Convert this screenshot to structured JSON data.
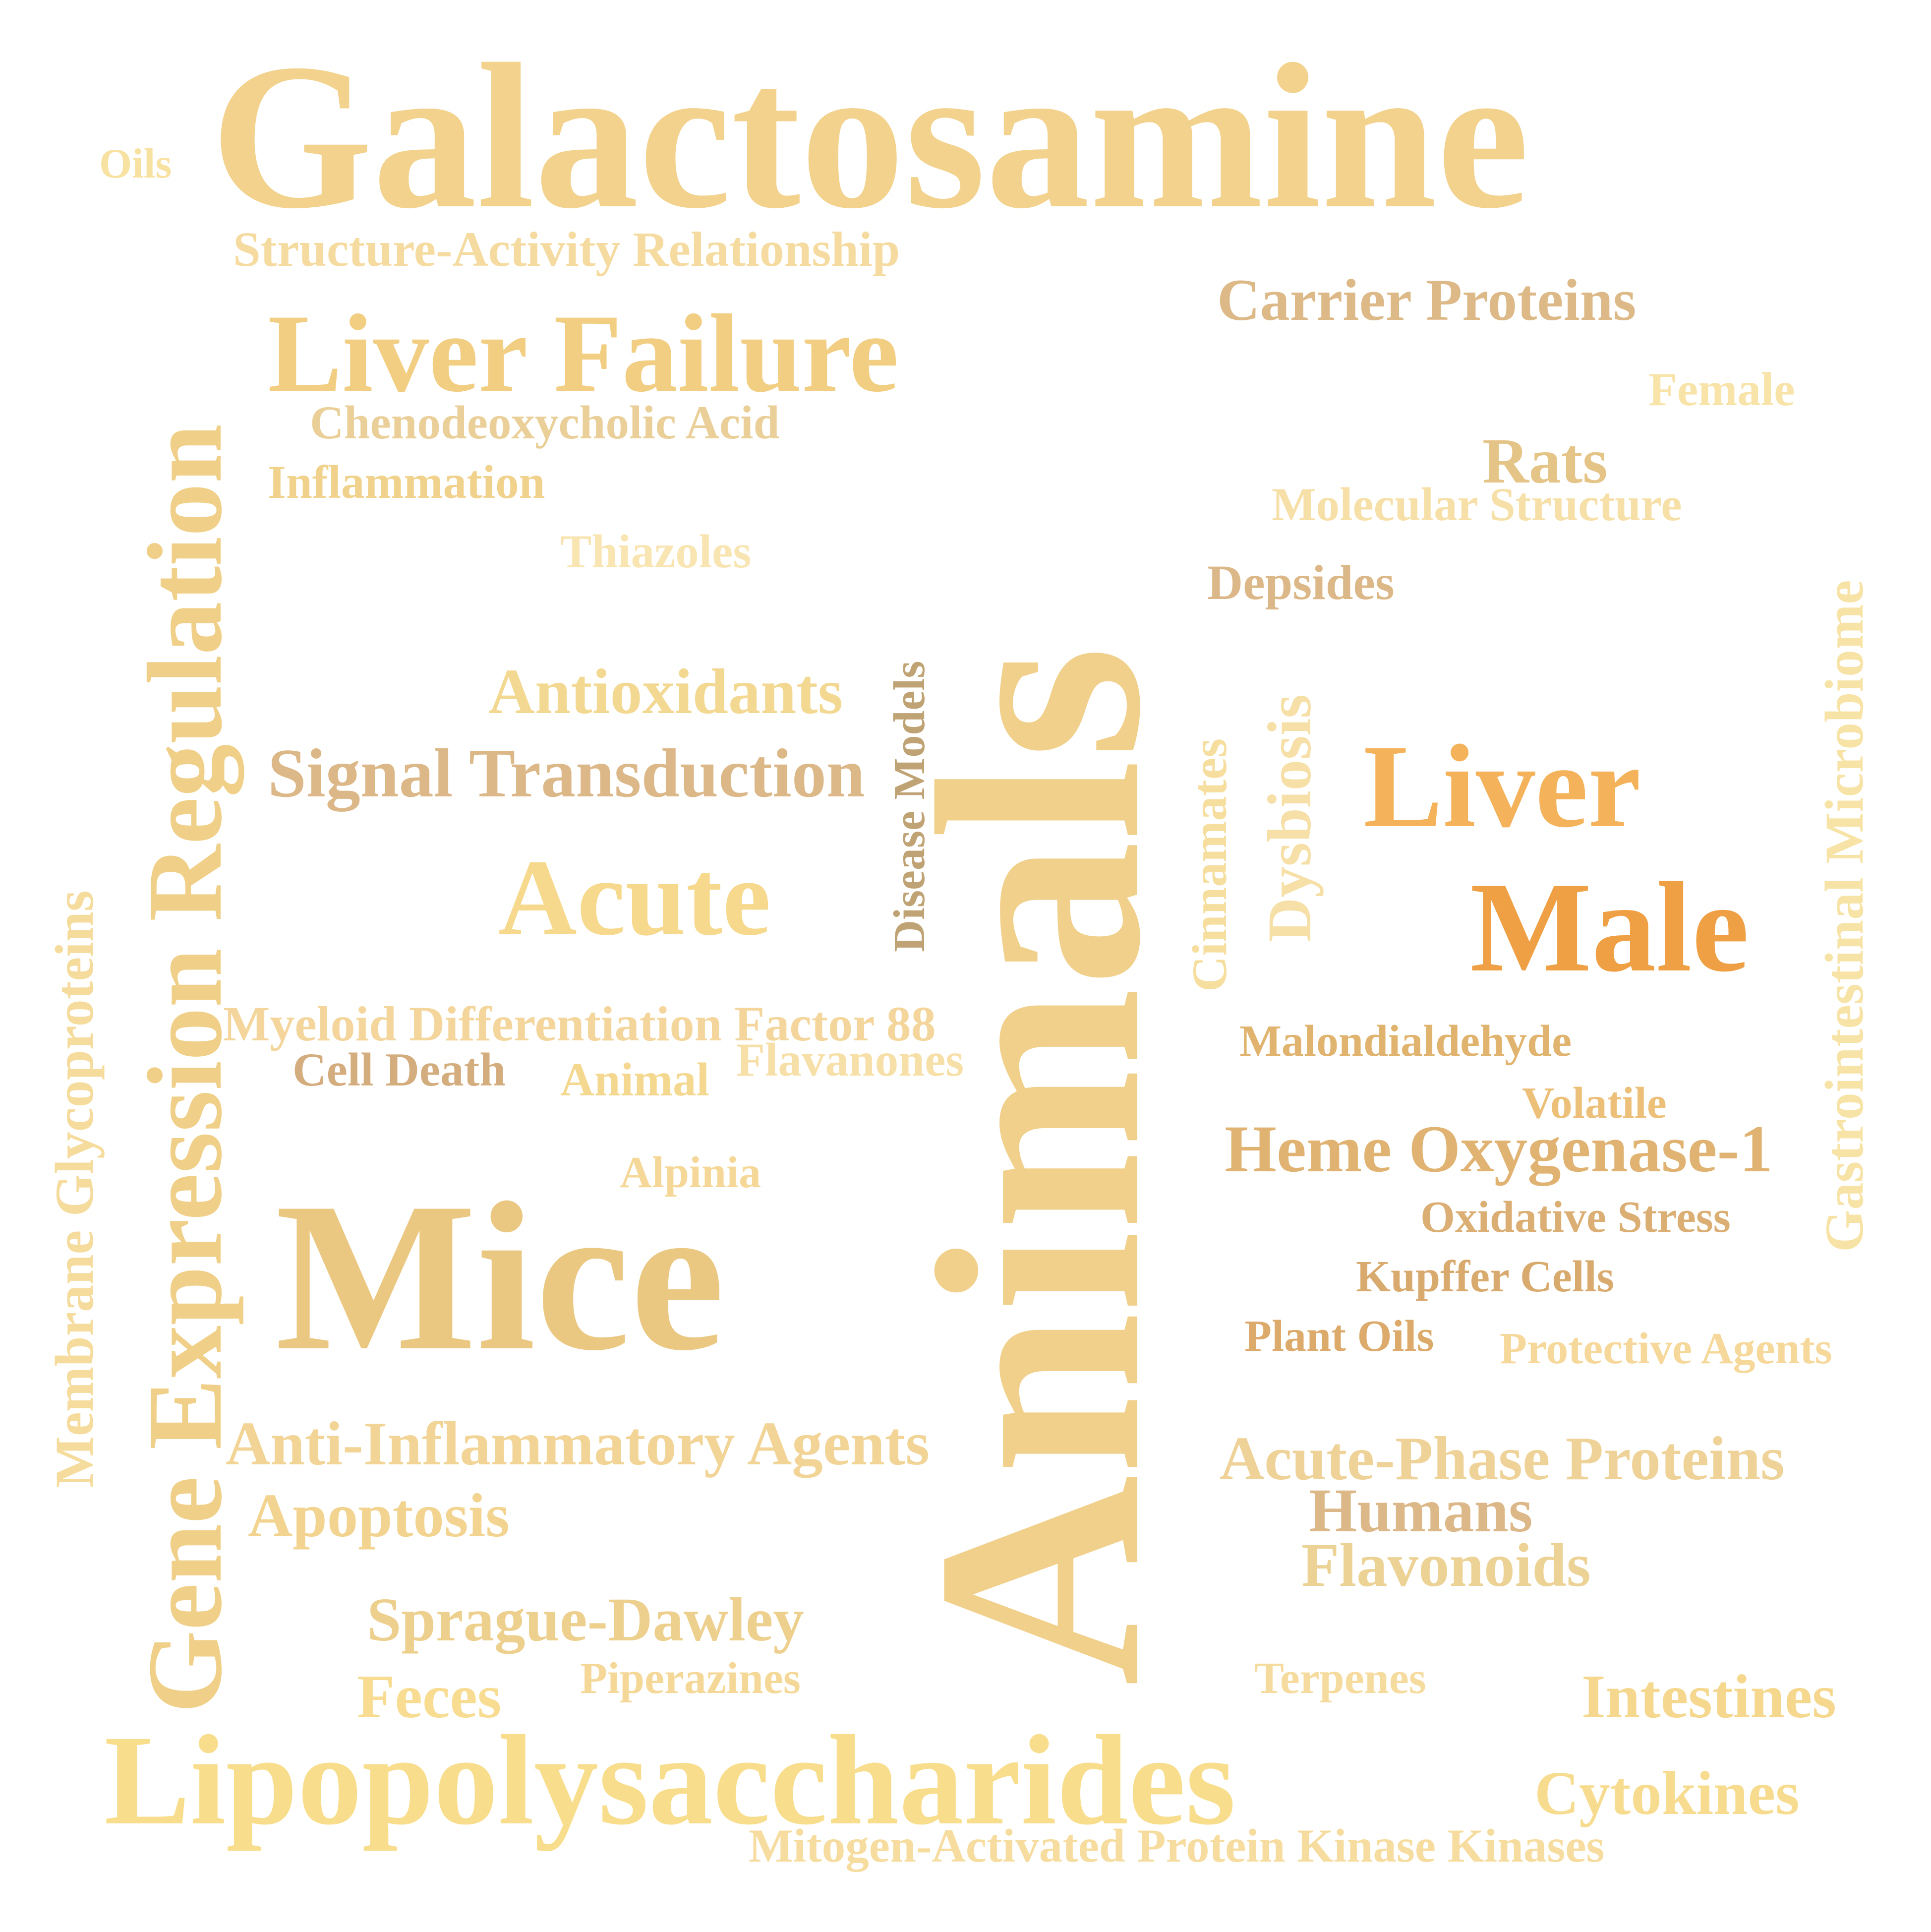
{
  "words": [
    {
      "key": "galactosamine",
      "text": "Galactosamine",
      "color": "#F2D28C"
    },
    {
      "key": "oils",
      "text": "Oils",
      "color": "#F8E2A2"
    },
    {
      "key": "structure_activity",
      "text": "Structure-Activity Relationship",
      "color": "#F5DBA0"
    },
    {
      "key": "liver_failure",
      "text": "Liver Failure",
      "color": "#F2CE82"
    },
    {
      "key": "chenodeoxycholic",
      "text": "Chenodeoxycholic Acid",
      "color": "#EACF98"
    },
    {
      "key": "inflammation",
      "text": "Inflammation",
      "color": "#F1D28C"
    },
    {
      "key": "thiazoles",
      "text": "Thiazoles",
      "color": "#F8E5B2"
    },
    {
      "key": "antioxidants",
      "text": "Antioxidants",
      "color": "#F3D892"
    },
    {
      "key": "signal_transduction",
      "text": "Signal Transduction",
      "color": "#DCB888"
    },
    {
      "key": "acute",
      "text": "Acute",
      "color": "#F6D98C"
    },
    {
      "key": "myeloid",
      "text": "Myeloid Differentiation Factor 88",
      "color": "#F4D69C"
    },
    {
      "key": "cell_death",
      "text": "Cell Death",
      "color": "#D4AD7E"
    },
    {
      "key": "animal",
      "text": "Animal",
      "color": "#F5D890"
    },
    {
      "key": "flavanones",
      "text": "Flavanones",
      "color": "#F7DFA8"
    },
    {
      "key": "alpinia",
      "text": "Alpinia",
      "color": "#F5D898"
    },
    {
      "key": "mice",
      "text": "Mice",
      "color": "#EBC882"
    },
    {
      "key": "anti_inflammatory",
      "text": "Anti-Inflammatory Agents",
      "color": "#F1D496"
    },
    {
      "key": "apoptosis",
      "text": "Apoptosis",
      "color": "#F2D490"
    },
    {
      "key": "sprague",
      "text": "Sprague-Dawley",
      "color": "#EED08E"
    },
    {
      "key": "feces",
      "text": "Feces",
      "color": "#F7DC92"
    },
    {
      "key": "piperazines",
      "text": "Piperazines",
      "color": "#F5D898"
    },
    {
      "key": "lipopolysaccharides",
      "text": "Lipopolysaccharides",
      "color": "#F8DE8C"
    },
    {
      "key": "mapk",
      "text": "Mitogen-Activated Protein Kinase Kinases",
      "color": "#F6DC9E"
    },
    {
      "key": "carrier_proteins",
      "text": "Carrier Proteins",
      "color": "#DDB988"
    },
    {
      "key": "female",
      "text": "Female",
      "color": "#F8E3A8"
    },
    {
      "key": "rats",
      "text": "Rats",
      "color": "#E5C587"
    },
    {
      "key": "molecular_structure",
      "text": "Molecular Structure",
      "color": "#F7E0A8"
    },
    {
      "key": "depsides",
      "text": "Depsides",
      "color": "#DCB888"
    },
    {
      "key": "liver",
      "text": "Liver",
      "color": "#F4B25A"
    },
    {
      "key": "male",
      "text": "Male",
      "color": "#EFA044"
    },
    {
      "key": "malondialdehyde",
      "text": "Malondialdehyde",
      "color": "#E0B36E"
    },
    {
      "key": "volatile",
      "text": "Volatile",
      "color": "#EDC07A"
    },
    {
      "key": "heme_oxygenase",
      "text": "Heme Oxygenase-1",
      "color": "#E0B372"
    },
    {
      "key": "oxidative_stress",
      "text": "Oxidative Stress",
      "color": "#DBAE74"
    },
    {
      "key": "kupffer",
      "text": "Kupffer Cells",
      "color": "#D9AA6E"
    },
    {
      "key": "plant_oils",
      "text": "Plant Oils",
      "color": "#DCAA6A"
    },
    {
      "key": "protective_agents",
      "text": "Protective Agents",
      "color": "#F6D89A"
    },
    {
      "key": "acute_phase",
      "text": "Acute-Phase Proteins",
      "color": "#EED297"
    },
    {
      "key": "humans",
      "text": "Humans",
      "color": "#DCB888"
    },
    {
      "key": "flavonoids",
      "text": "Flavonoids",
      "color": "#ECD294"
    },
    {
      "key": "terpenes",
      "text": "Terpenes",
      "color": "#F6DB9E"
    },
    {
      "key": "intestines",
      "text": "Intestines",
      "color": "#F5D78E"
    },
    {
      "key": "cytokines",
      "text": "Cytokines",
      "color": "#F7DC90"
    },
    {
      "key": "animals",
      "text": "Animals",
      "color": "#F0D08A"
    },
    {
      "key": "gene_expression",
      "text": "Gene Expression Regulation",
      "color": "#F0D088"
    },
    {
      "key": "membrane_glyco",
      "text": "Membrane Glycoproteins",
      "color": "#F5DB9C"
    },
    {
      "key": "disease_models",
      "text": "Disease Models",
      "color": "#BFA374"
    },
    {
      "key": "cinnamates",
      "text": "Cinnamates",
      "color": "#F6DE9E"
    },
    {
      "key": "dysbiosis",
      "text": "Dysbiosis",
      "color": "#F6E0A8"
    },
    {
      "key": "gi_microbiome",
      "text": "Gastrointestinal Microbiome",
      "color": "#F8E3A6"
    }
  ]
}
